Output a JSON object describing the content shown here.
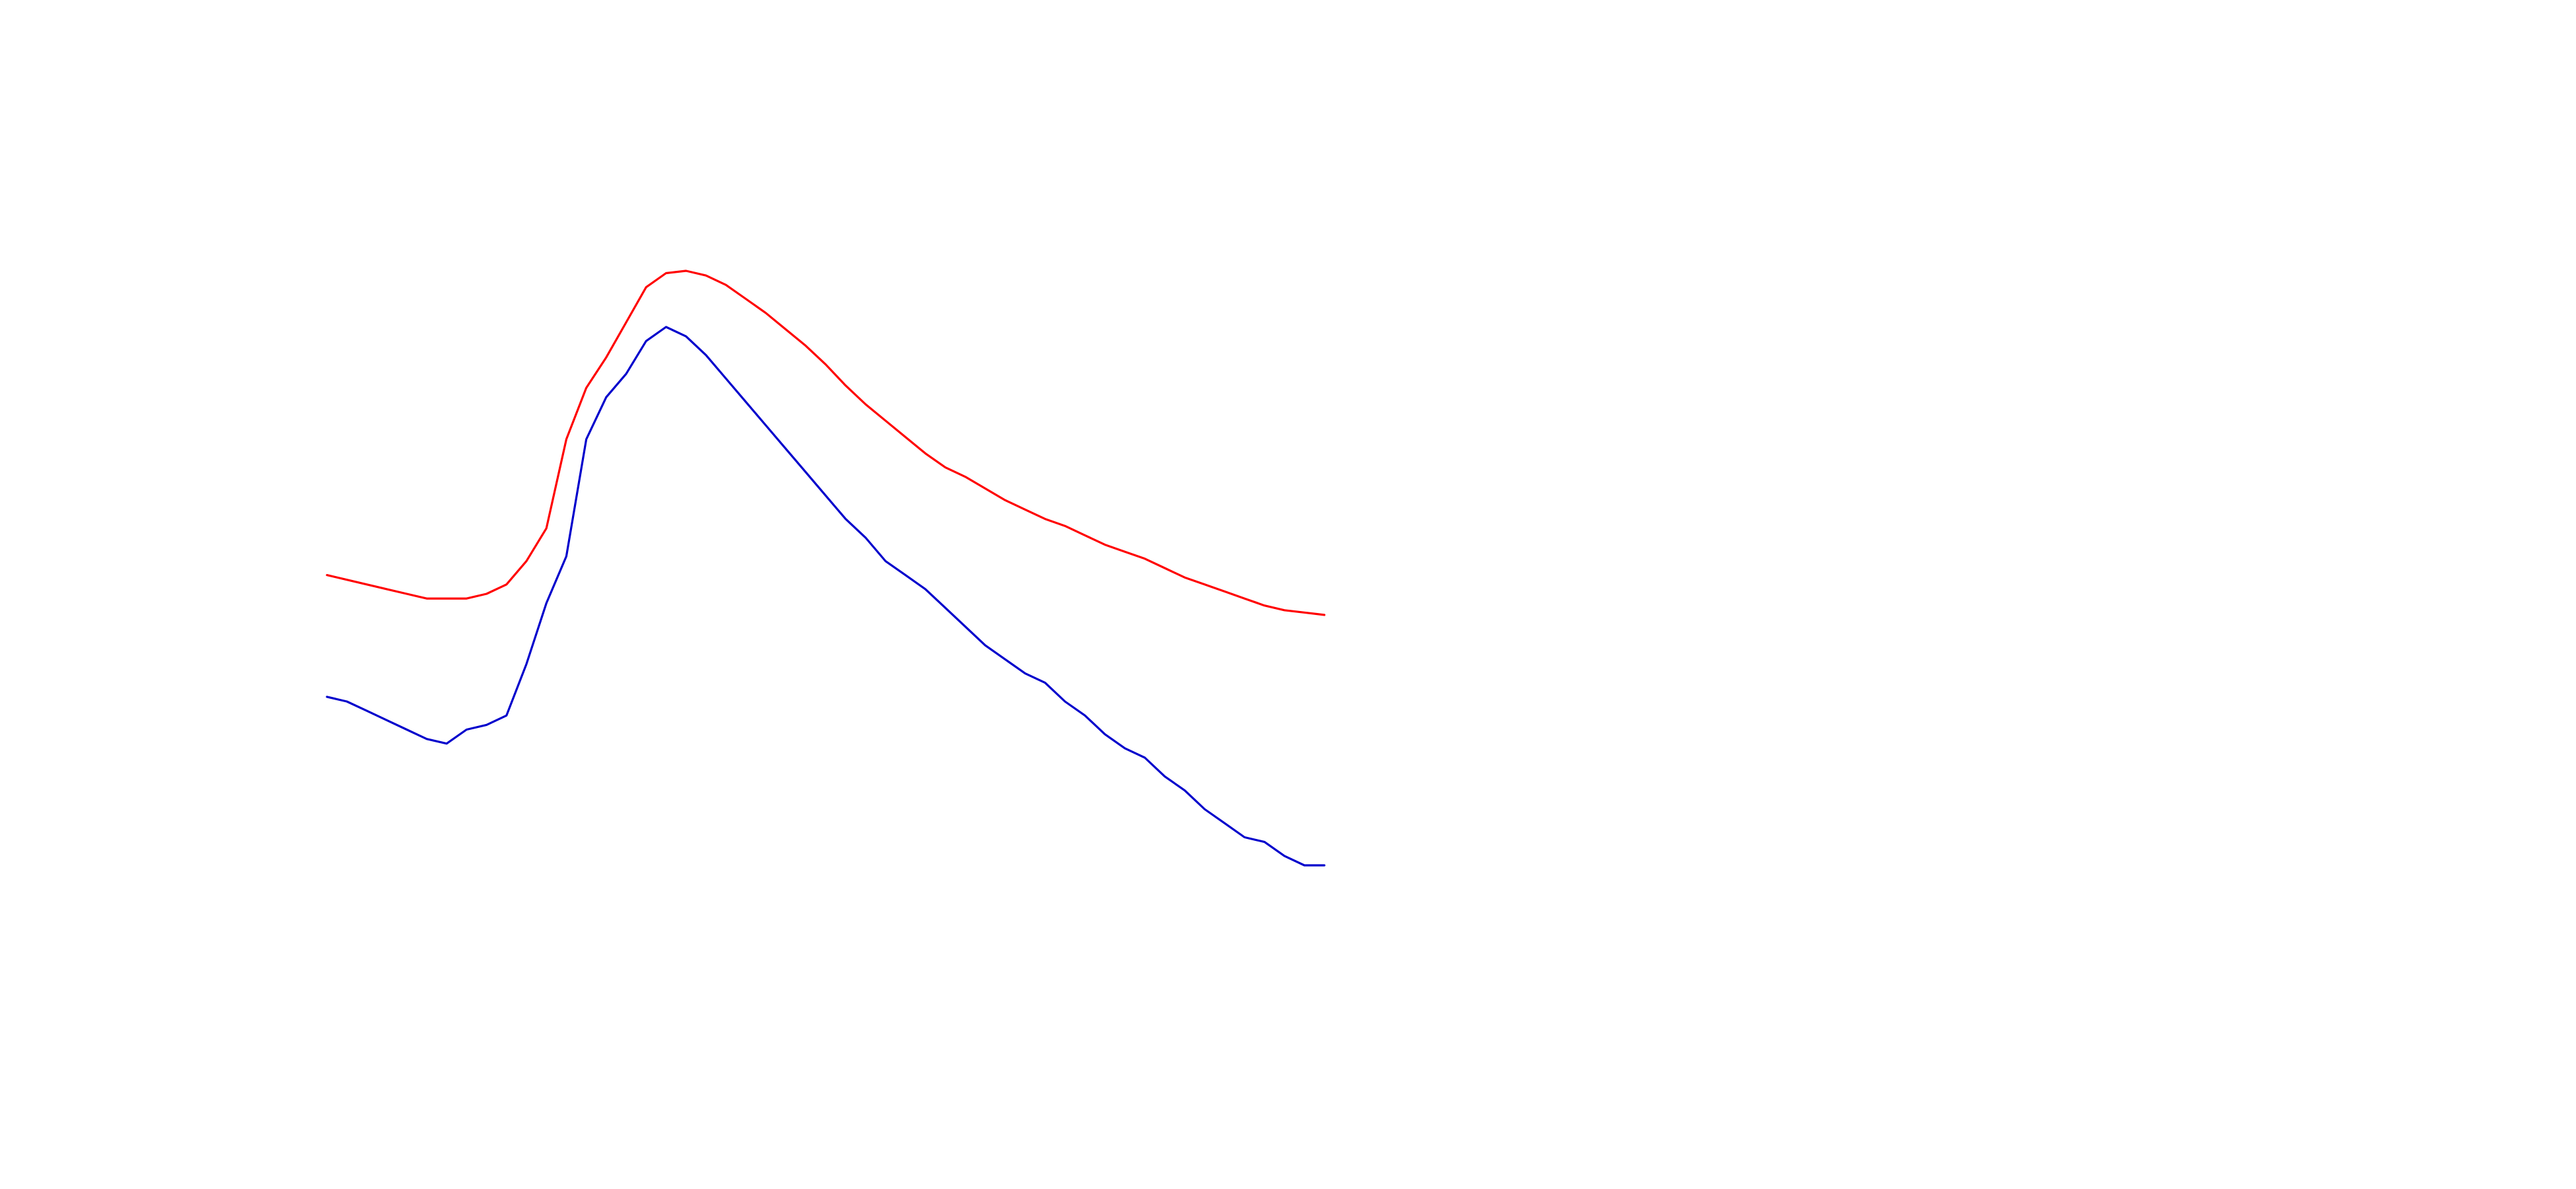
{
  "chart_data": {
    "type": "line",
    "title": "",
    "xlabel": "",
    "ylabel": "",
    "grid": false,
    "axes_visible": false,
    "legend": "none",
    "x": [
      0,
      2,
      4,
      6,
      8,
      10,
      12,
      14,
      16,
      18,
      20,
      22,
      24,
      26,
      28,
      30,
      32,
      34,
      36,
      38,
      40,
      42,
      44,
      46,
      48,
      50,
      52,
      54,
      56,
      58,
      60,
      62,
      64,
      66,
      68,
      70,
      72,
      74,
      76,
      78,
      80,
      82,
      84,
      86,
      88,
      90,
      92,
      94,
      96,
      98,
      100
    ],
    "series": [
      {
        "color": "#ff0000",
        "values": [
          0.72,
          0.7,
          0.68,
          0.66,
          0.64,
          0.62,
          0.62,
          0.62,
          0.64,
          0.68,
          0.78,
          0.92,
          1.3,
          1.52,
          1.65,
          1.8,
          1.95,
          2.01,
          2.02,
          2.0,
          1.96,
          1.9,
          1.84,
          1.77,
          1.7,
          1.62,
          1.53,
          1.45,
          1.38,
          1.31,
          1.24,
          1.18,
          1.14,
          1.09,
          1.04,
          1.0,
          0.96,
          0.93,
          0.89,
          0.85,
          0.82,
          0.79,
          0.75,
          0.71,
          0.68,
          0.65,
          0.62,
          0.59,
          0.57,
          0.56,
          0.55
        ]
      },
      {
        "color": "#0000cc",
        "values": [
          0.2,
          0.18,
          0.14,
          0.1,
          0.06,
          0.02,
          0.0,
          0.06,
          0.08,
          0.12,
          0.34,
          0.6,
          0.8,
          1.3,
          1.48,
          1.58,
          1.72,
          1.78,
          1.74,
          1.66,
          1.56,
          1.46,
          1.36,
          1.26,
          1.16,
          1.06,
          0.96,
          0.88,
          0.78,
          0.72,
          0.66,
          0.58,
          0.5,
          0.42,
          0.36,
          0.3,
          0.26,
          0.18,
          0.12,
          0.04,
          -0.02,
          -0.06,
          -0.14,
          -0.2,
          -0.28,
          -0.34,
          -0.4,
          -0.42,
          -0.48,
          -0.52,
          -0.52
        ]
      }
    ]
  }
}
